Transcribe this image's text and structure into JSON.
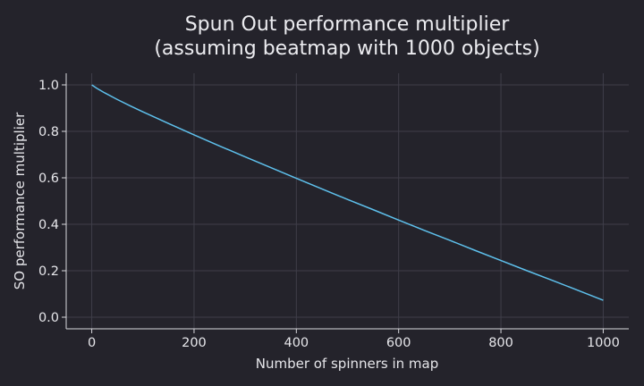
{
  "chart_data": {
    "type": "line",
    "title_lines": [
      "Spun Out performance multiplier",
      "(assuming beatmap with 1000 objects)"
    ],
    "xlabel": "Number of spinners in map",
    "ylabel": "SO performance multiplier",
    "xlim": [
      -50,
      1050
    ],
    "ylim": [
      -0.05,
      1.05
    ],
    "xticks": [
      0,
      200,
      400,
      600,
      800,
      1000
    ],
    "yticks": [
      0.0,
      0.2,
      0.4,
      0.6,
      0.8,
      1.0
    ],
    "xtick_labels": [
      "0",
      "200",
      "400",
      "600",
      "800",
      "1000"
    ],
    "ytick_labels": [
      "0.0",
      "0.2",
      "0.4",
      "0.6",
      "0.8",
      "1.0"
    ],
    "grid": true,
    "series": [
      {
        "color": "#5ec0ec",
        "x": [
          0,
          10,
          25,
          50,
          75,
          100,
          150,
          200,
          250,
          300,
          350,
          400,
          450,
          500,
          550,
          600,
          650,
          700,
          750,
          800,
          850,
          900,
          950,
          1000
        ],
        "y": [
          1.0,
          0.985,
          0.966,
          0.937,
          0.91,
          0.884,
          0.834,
          0.785,
          0.737,
          0.69,
          0.644,
          0.598,
          0.552,
          0.507,
          0.463,
          0.418,
          0.374,
          0.331,
          0.287,
          0.244,
          0.201,
          0.159,
          0.116,
          0.073
        ]
      }
    ]
  }
}
